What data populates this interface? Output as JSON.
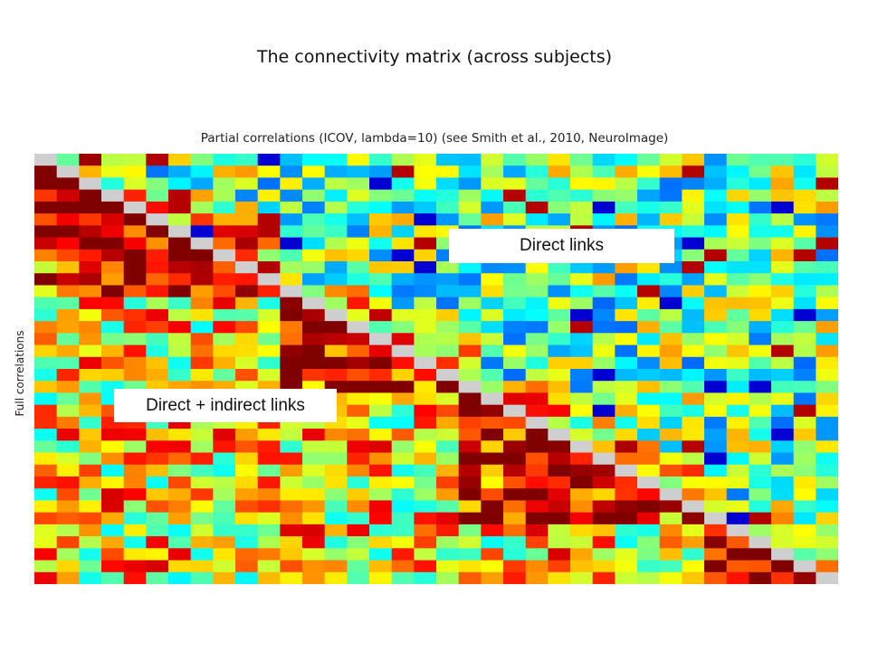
{
  "title": "The connectivity matrix (across subjects)",
  "chart_data": {
    "type": "heatmap",
    "title": "Partial correlations (ICOV, lambda=10) (see Smith et al., 2010, NeuroImage)",
    "ylabel": "Full correlations",
    "xlabel": "",
    "n": 36,
    "diagonal_color": "#cfcfcf",
    "upper_triangle": "Partial correlations",
    "lower_triangle": "Full correlations",
    "value_range": [
      -1,
      1
    ],
    "colormap": [
      "#00008f",
      "#0000ff",
      "#0080ff",
      "#00ffff",
      "#80ff80",
      "#ffff00",
      "#ff8000",
      "#ff0000",
      "#800000"
    ],
    "annotations": [
      "Direct links",
      "Direct + indirect links"
    ],
    "strong_blocks": [
      {
        "rows": [
          0,
          11
        ],
        "cols": [
          0,
          11
        ]
      },
      {
        "rows": [
          11,
          19
        ],
        "cols": [
          11,
          19
        ]
      },
      {
        "rows": [
          19,
          30
        ],
        "cols": [
          19,
          30
        ]
      },
      {
        "rows": [
          30,
          35
        ],
        "cols": [
          30,
          35
        ]
      }
    ]
  }
}
